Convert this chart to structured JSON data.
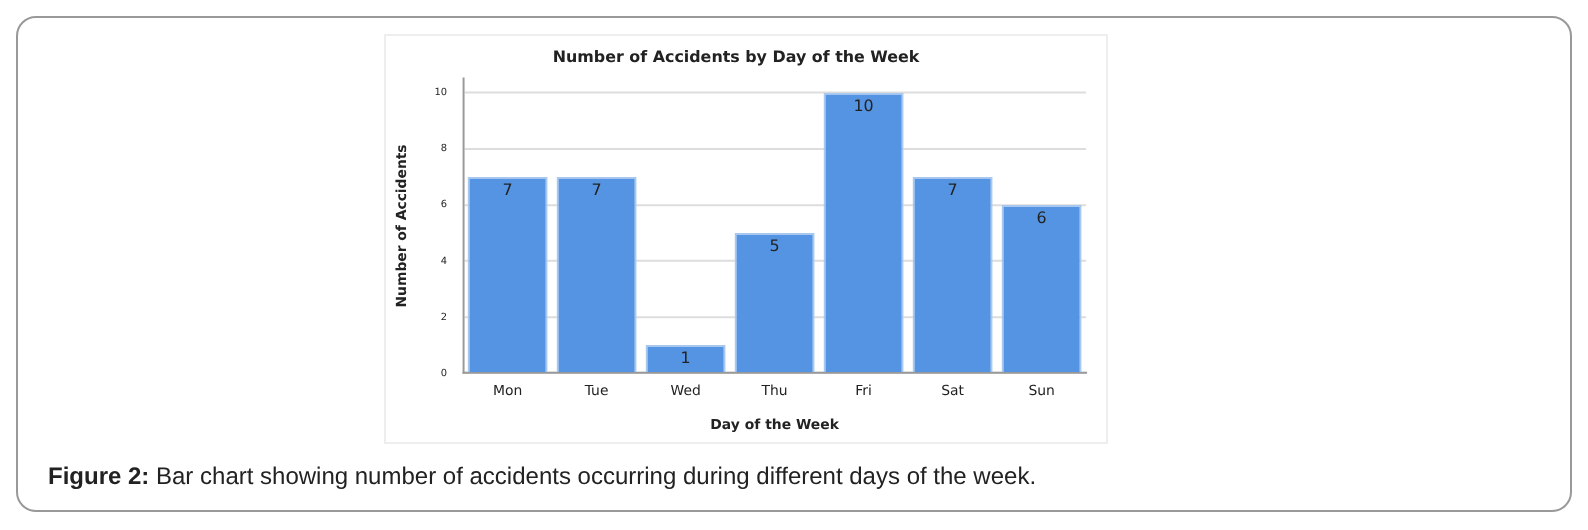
{
  "chart_data": {
    "type": "bar",
    "title": "Number of Accidents by Day of the Week",
    "xlabel": "Day of the Week",
    "ylabel": "Number of Accidents",
    "categories": [
      "Mon",
      "Tue",
      "Wed",
      "Thu",
      "Fri",
      "Sat",
      "Sun"
    ],
    "values": [
      7,
      7,
      1,
      5,
      10,
      7,
      6
    ],
    "color": "#5594e2",
    "ylim": [
      0,
      10.5
    ],
    "yticks": [
      0,
      2,
      4,
      6,
      8,
      10
    ],
    "grid": "y",
    "data_labels": true,
    "legend": false,
    "annotations": [
      "Figure 2: Bar chart showing number of accidents occurring during different days of the week."
    ]
  }
}
